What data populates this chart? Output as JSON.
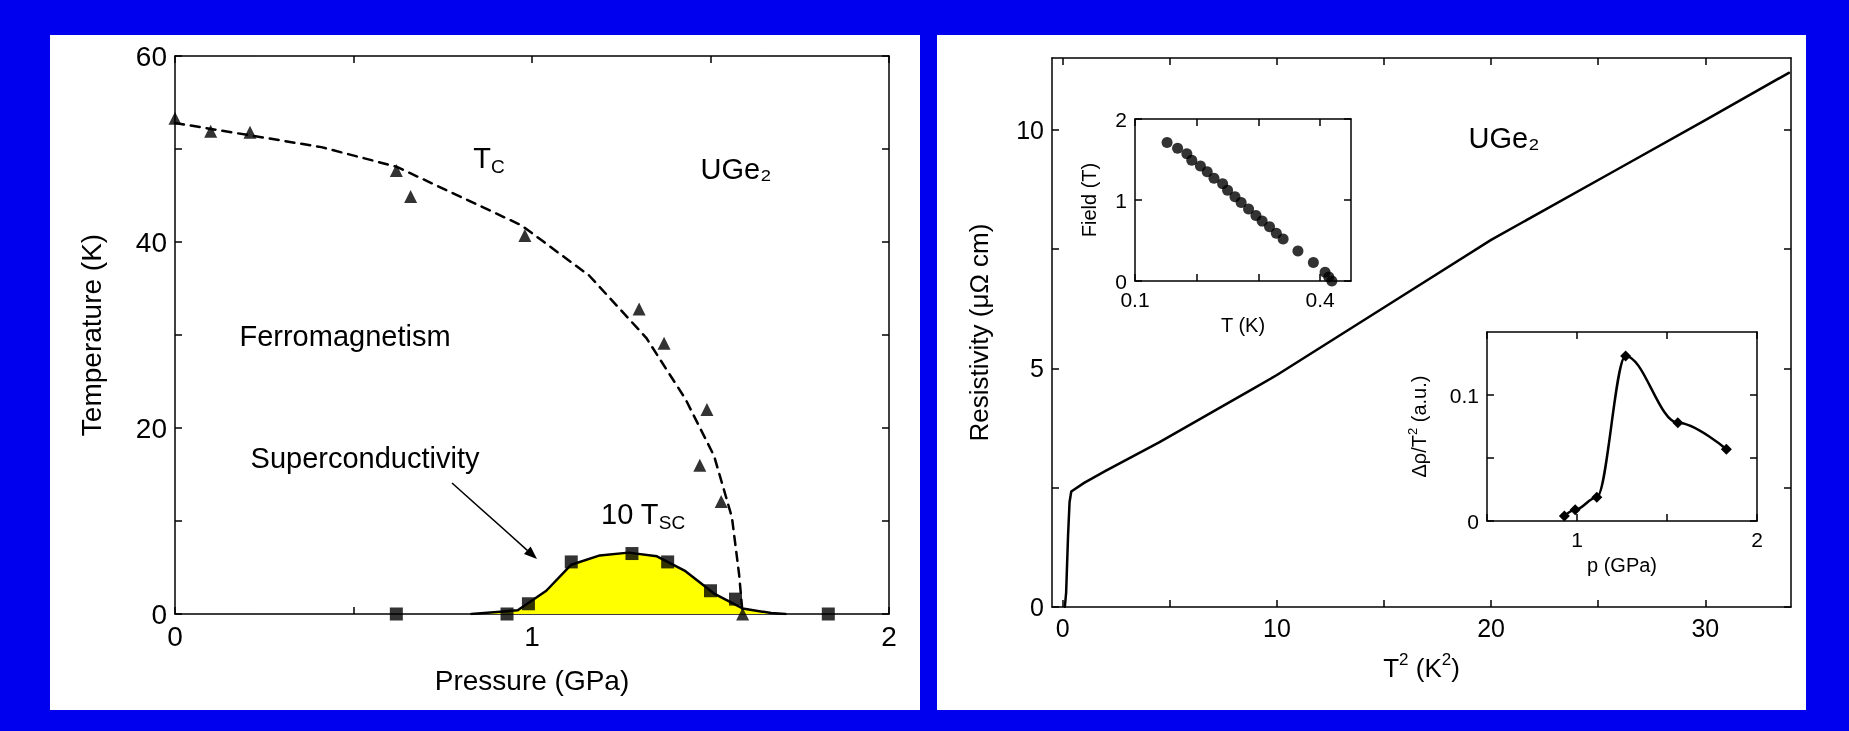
{
  "chart_data": [
    {
      "type": "scatter",
      "xlabel": "Pressure (GPa)",
      "ylabel": "Temperature (K)",
      "xlim": [
        0,
        2
      ],
      "xticks": [
        0,
        {
          "value": 0.5,
          "label": null
        },
        1,
        {
          "value": 1.5,
          "label": null
        },
        2
      ],
      "ylim": [
        0,
        60
      ],
      "yticks": [
        0,
        {
          "value": 10,
          "label": null
        },
        20,
        {
          "value": 30,
          "label": null
        },
        40,
        {
          "value": 50,
          "label": null
        },
        60
      ],
      "annotations": [
        "Ferromagnetism",
        "Superconductivity",
        "UGe₂",
        "T$_{C}$",
        "10 T$_{SC}$"
      ],
      "series": [
        {
          "type": "area",
          "color": "#ffff00",
          "line_style": "solid",
          "marker": "none",
          "x": [
            0.83,
            0.96,
            1.04,
            1.11,
            1.19,
            1.27,
            1.35,
            1.43,
            1.51,
            1.59,
            1.67,
            1.71
          ],
          "values": [
            0,
            0.4,
            2.5,
            5.3,
            6.3,
            6.6,
            6.2,
            4.6,
            2.2,
            0.6,
            0.1,
            0
          ]
        },
        {
          "type": "line",
          "color": "#000000",
          "line_style": "dashed",
          "marker": "none",
          "x": [
            0,
            0.41,
            0.62,
            0.97,
            1.16,
            1.32,
            1.43,
            1.51,
            1.56,
            1.58,
            1.59
          ],
          "values": [
            52.8,
            50.2,
            48.1,
            41.8,
            36.4,
            29.7,
            23.1,
            17.0,
            10.4,
            4.3,
            0
          ]
        },
        {
          "color": "#000000",
          "marker": "triangle",
          "x": [
            0,
            0.1,
            0.21,
            0.62,
            0.66,
            0.98,
            1.3,
            1.37,
            1.49,
            1.47,
            1.53,
            1.59
          ],
          "values": [
            53.3,
            51.9,
            51.8,
            47.7,
            44.9,
            40.7,
            32.8,
            29.1,
            22.0,
            16.0,
            12.1,
            0
          ]
        },
        {
          "color": "#000000",
          "marker": "square",
          "x": [
            0.62,
            0.93,
            0.99,
            1.11,
            1.28,
            1.38,
            1.5,
            1.57,
            1.83
          ],
          "values": [
            0,
            0,
            1.1,
            5.6,
            6.5,
            5.6,
            2.5,
            1.6,
            0
          ]
        }
      ]
    },
    {
      "type": "line",
      "xlabel": "T$^{2}$ (K$^{2}$)",
      "ylabel": "Resistivity (μΩ cm)",
      "xlim": [
        -0.5,
        34
      ],
      "xticks": [
        0,
        {
          "value": 5,
          "label": null
        },
        10,
        {
          "value": 15,
          "label": null
        },
        20,
        {
          "value": 25,
          "label": null
        },
        30
      ],
      "ylim": [
        0,
        11.5
      ],
      "yticks": [
        0,
        {
          "value": 2.5,
          "label": null
        },
        5,
        {
          "value": 7.5,
          "label": null
        },
        10
      ],
      "marker": "none",
      "line_style": "solid",
      "annotations": [
        "UGe₂"
      ],
      "series": [
        {
          "color": "#000000",
          "x": [
            0.1,
            0.16,
            0.25,
            0.32,
            0.4,
            1,
            2,
            4.5,
            9,
            10,
            15.2,
            20,
            25.9,
            30,
            33.9
          ],
          "values": [
            0,
            0.3,
            1.5,
            2.2,
            2.42,
            2.6,
            2.85,
            3.45,
            4.6,
            4.86,
            6.33,
            7.69,
            9.17,
            10.2,
            11.19
          ]
        }
      ]
    },
    {
      "type": "scatter",
      "xlabel": "T (K)",
      "ylabel": "Field (T)",
      "xlim": [
        0.1,
        0.45
      ],
      "xticks": [
        0.1,
        {
          "value": 0.2,
          "label": null
        },
        {
          "value": 0.3,
          "label": null
        },
        0.4
      ],
      "ylim": [
        0,
        2
      ],
      "yticks": [
        0,
        1,
        2
      ],
      "marker": "circle",
      "series": [
        {
          "color": "#000000",
          "x": [
            0.152,
            0.169,
            0.184,
            0.192,
            0.206,
            0.217,
            0.228,
            0.242,
            0.25,
            0.262,
            0.272,
            0.284,
            0.296,
            0.306,
            0.318,
            0.329,
            0.34,
            0.364,
            0.389,
            0.408,
            0.414,
            0.419
          ],
          "values": [
            1.71,
            1.64,
            1.57,
            1.49,
            1.42,
            1.35,
            1.27,
            1.2,
            1.12,
            1.04,
            0.97,
            0.89,
            0.81,
            0.74,
            0.67,
            0.59,
            0.52,
            0.37,
            0.23,
            0.11,
            0.05,
            0
          ]
        }
      ]
    },
    {
      "type": "line",
      "xlabel": "p (GPa)",
      "ylabel": "Δρ/T$^{2}$ (a.u.)",
      "xlim": [
        0.5,
        2
      ],
      "xticks": [
        {
          "value": 0.5,
          "label": null
        },
        1,
        {
          "value": 1.5,
          "label": null
        },
        2
      ],
      "ylim": [
        0,
        0.15
      ],
      "yticks": [
        0,
        {
          "value": 0.05,
          "label": null
        },
        0.1
      ],
      "marker": "diamond",
      "line_style": "solid",
      "series": [
        {
          "color": "#000000",
          "x": [
            0.93,
            0.99,
            1.11,
            1.27,
            1.56,
            1.83
          ],
          "values": [
            0.004,
            0.009,
            0.019,
            0.131,
            0.078,
            0.057
          ]
        }
      ]
    }
  ]
}
